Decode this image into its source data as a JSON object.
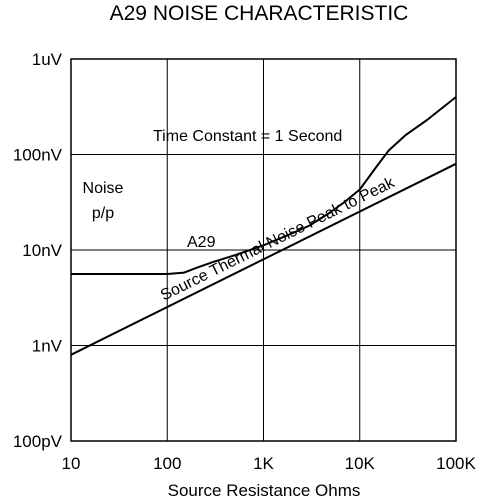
{
  "chart_data": {
    "type": "line",
    "title": "A29 NOISE CHARACTERISTIC",
    "xlabel": "Source Resistance Ohms",
    "ylabel_lines": [
      "Noise",
      "p/p"
    ],
    "xscale": "log",
    "yscale": "log",
    "xlim": [
      10,
      100000
    ],
    "ylim": [
      1e-10,
      1e-06
    ],
    "x_ticks": [
      {
        "value": 10,
        "label": "10"
      },
      {
        "value": 100,
        "label": "100"
      },
      {
        "value": 1000,
        "label": "1K"
      },
      {
        "value": 10000,
        "label": "10K"
      },
      {
        "value": 100000,
        "label": "100K"
      }
    ],
    "y_ticks": [
      {
        "value": 1e-10,
        "label": "100pV"
      },
      {
        "value": 1e-09,
        "label": "1nV"
      },
      {
        "value": 1e-08,
        "label": "10nV"
      },
      {
        "value": 1e-07,
        "label": "100nV"
      },
      {
        "value": 1e-06,
        "label": "1uV"
      }
    ],
    "grid": true,
    "annotation": "Time Constant = 1 Second",
    "series": [
      {
        "name": "A29",
        "points": [
          [
            10,
            5.6e-09
          ],
          [
            60,
            5.6e-09
          ],
          [
            100,
            5.6e-09
          ],
          [
            150,
            5.8e-09
          ],
          [
            200,
            6.5e-09
          ],
          [
            300,
            7.5e-09
          ],
          [
            500,
            8.8e-09
          ],
          [
            1000,
            1.12e-08
          ],
          [
            2000,
            1.5e-08
          ],
          [
            3000,
            1.8e-08
          ],
          [
            5000,
            2.5e-08
          ],
          [
            7000,
            3.2e-08
          ],
          [
            10000,
            4.3e-08
          ],
          [
            15000,
            7.5e-08
          ],
          [
            20000,
            1.1e-07
          ],
          [
            30000,
            1.6e-07
          ],
          [
            50000,
            2.3e-07
          ],
          [
            100000,
            4e-07
          ]
        ]
      },
      {
        "name": "Source Thermal Noise Peak to Peak",
        "points": [
          [
            10,
            8e-10
          ],
          [
            100000,
            8e-08
          ]
        ]
      }
    ]
  }
}
